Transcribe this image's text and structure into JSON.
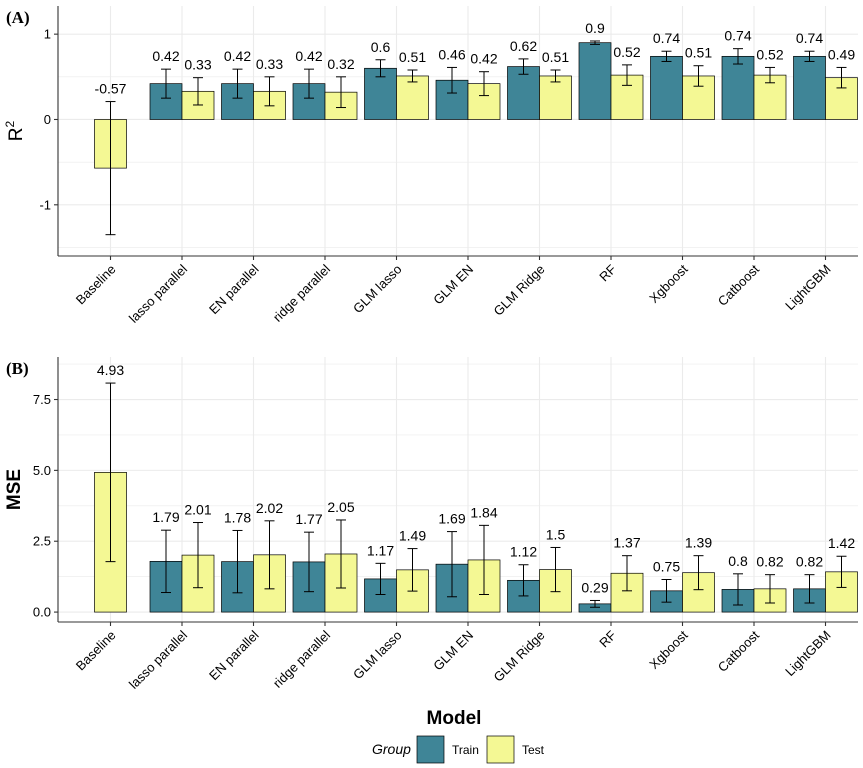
{
  "colors": {
    "train": "#3f8597",
    "test": "#f4f894",
    "grid": "#ebebeb",
    "axis": "#333333"
  },
  "chart_data": [
    {
      "type": "bar",
      "panel_label": "(A)",
      "ylabel": "R",
      "ylabel_superscript": "2",
      "ylim": [
        -1.6,
        1.33
      ],
      "yticks": [
        1,
        0,
        -1
      ],
      "ytick_labels": [
        "1",
        "0",
        "-1"
      ],
      "categories": [
        "Baseline",
        "lasso parallel",
        "EN parallel",
        "ridge parallel",
        "GLM lasso",
        "GLM EN",
        "GLM Ridge",
        "RF",
        "Xgboost",
        "Catboost",
        "LightGBM"
      ],
      "series": [
        {
          "name": "Train",
          "values": [
            null,
            0.42,
            0.42,
            0.42,
            0.6,
            0.46,
            0.62,
            0.9,
            0.74,
            0.74,
            0.74
          ],
          "errors": [
            null,
            0.17,
            0.17,
            0.17,
            0.1,
            0.15,
            0.09,
            0.02,
            0.06,
            0.09,
            0.06
          ],
          "labels": [
            "",
            "0.42",
            "0.42",
            "0.42",
            "0.6",
            "0.46",
            "0.62",
            "0.9",
            "0.74",
            "0.74",
            "0.74"
          ]
        },
        {
          "name": "Test",
          "values": [
            -0.57,
            0.33,
            0.33,
            0.32,
            0.51,
            0.42,
            0.51,
            0.52,
            0.51,
            0.52,
            0.49
          ],
          "errors": [
            0.78,
            0.16,
            0.17,
            0.18,
            0.07,
            0.14,
            0.07,
            0.12,
            0.12,
            0.09,
            0.12
          ],
          "labels": [
            "-0.57",
            "0.33",
            "0.33",
            "0.32",
            "0.51",
            "0.42",
            "0.51",
            "0.52",
            "0.51",
            "0.52",
            "0.49"
          ]
        }
      ]
    },
    {
      "type": "bar",
      "panel_label": "(B)",
      "ylabel": "MSE",
      "xlabel": "Model",
      "ylim": [
        -0.35,
        9.0
      ],
      "yticks": [
        0,
        2.5,
        5,
        7.5
      ],
      "ytick_labels": [
        "0.0",
        "2.5",
        "5.0",
        "7.5"
      ],
      "categories": [
        "Baseline",
        "lasso parallel",
        "EN parallel",
        "ridge parallel",
        "GLM lasso",
        "GLM EN",
        "GLM Ridge",
        "RF",
        "Xgboost",
        "Catboost",
        "LightGBM"
      ],
      "series": [
        {
          "name": "Train",
          "values": [
            null,
            1.79,
            1.78,
            1.77,
            1.17,
            1.69,
            1.12,
            0.29,
            0.75,
            0.8,
            0.82
          ],
          "errors": [
            null,
            1.1,
            1.1,
            1.05,
            0.55,
            1.15,
            0.55,
            0.12,
            0.4,
            0.55,
            0.5
          ],
          "labels": [
            "",
            "1.79",
            "1.78",
            "1.77",
            "1.17",
            "1.69",
            "1.12",
            "0.29",
            "0.75",
            "0.8",
            "0.82"
          ]
        },
        {
          "name": "Test",
          "values": [
            4.93,
            2.01,
            2.02,
            2.05,
            1.49,
            1.84,
            1.5,
            1.37,
            1.39,
            0.82,
            1.42
          ],
          "errors": [
            3.15,
            1.15,
            1.2,
            1.2,
            0.75,
            1.22,
            0.78,
            0.62,
            0.6,
            0.5,
            0.55
          ],
          "labels": [
            "4.93",
            "2.01",
            "2.02",
            "2.05",
            "1.49",
            "1.84",
            "1.5",
            "1.37",
            "1.39",
            "0.82",
            "1.42"
          ]
        }
      ]
    }
  ],
  "legend": {
    "title": "Group",
    "items": [
      "Train",
      "Test"
    ]
  }
}
